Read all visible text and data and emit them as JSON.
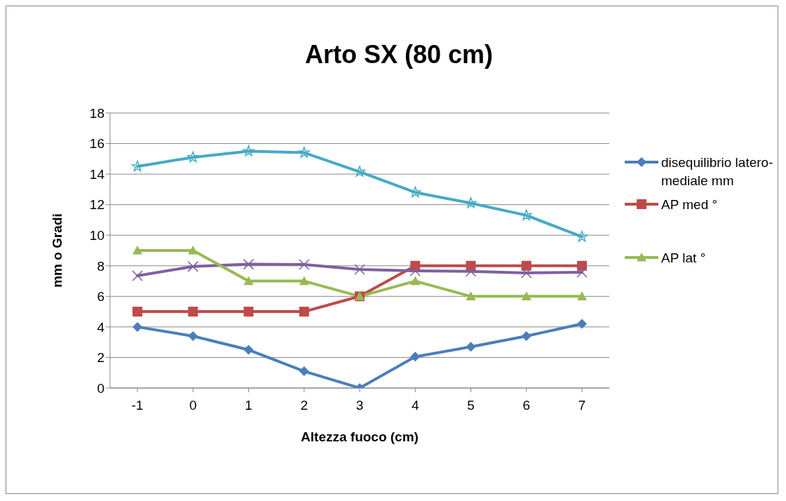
{
  "chart_data": {
    "type": "line",
    "title": "Arto SX (80 cm)",
    "xlabel": "Altezza fuoco (cm)",
    "ylabel": "mm o Gradi",
    "categories": [
      "-1",
      "0",
      "1",
      "2",
      "3",
      "4",
      "5",
      "6",
      "7"
    ],
    "ylim": [
      0,
      18
    ],
    "yticks": [
      0,
      2,
      4,
      6,
      8,
      10,
      12,
      14,
      16,
      18
    ],
    "grid": "y",
    "legend": "right",
    "series": [
      {
        "name": "disequilibrio latero-mediale mm",
        "color": "#4a7ebb",
        "marker": "diamond",
        "values": [
          4,
          3.4,
          2.5,
          1.1,
          0,
          2.05,
          2.7,
          3.4,
          4.2
        ]
      },
      {
        "name": "AP med °",
        "color": "#be4b48",
        "marker": "square",
        "values": [
          5,
          5,
          5,
          5,
          6,
          8,
          8,
          8,
          8
        ]
      },
      {
        "color": "#7d60a0",
        "marker": "cross",
        "values": [
          7.35,
          7.95,
          8.1,
          8.08,
          7.76,
          7.67,
          7.63,
          7.53,
          7.58
        ]
      },
      {
        "name": "AP lat °",
        "color": "#98b954",
        "marker": "triangle",
        "values": [
          9,
          9,
          7,
          7,
          6,
          7,
          6,
          6,
          6
        ]
      },
      {
        "color": "#46aac5",
        "marker": "star",
        "values": [
          14.5,
          15.1,
          15.5,
          15.4,
          14.15,
          12.8,
          12.1,
          11.3,
          9.9
        ]
      }
    ]
  }
}
